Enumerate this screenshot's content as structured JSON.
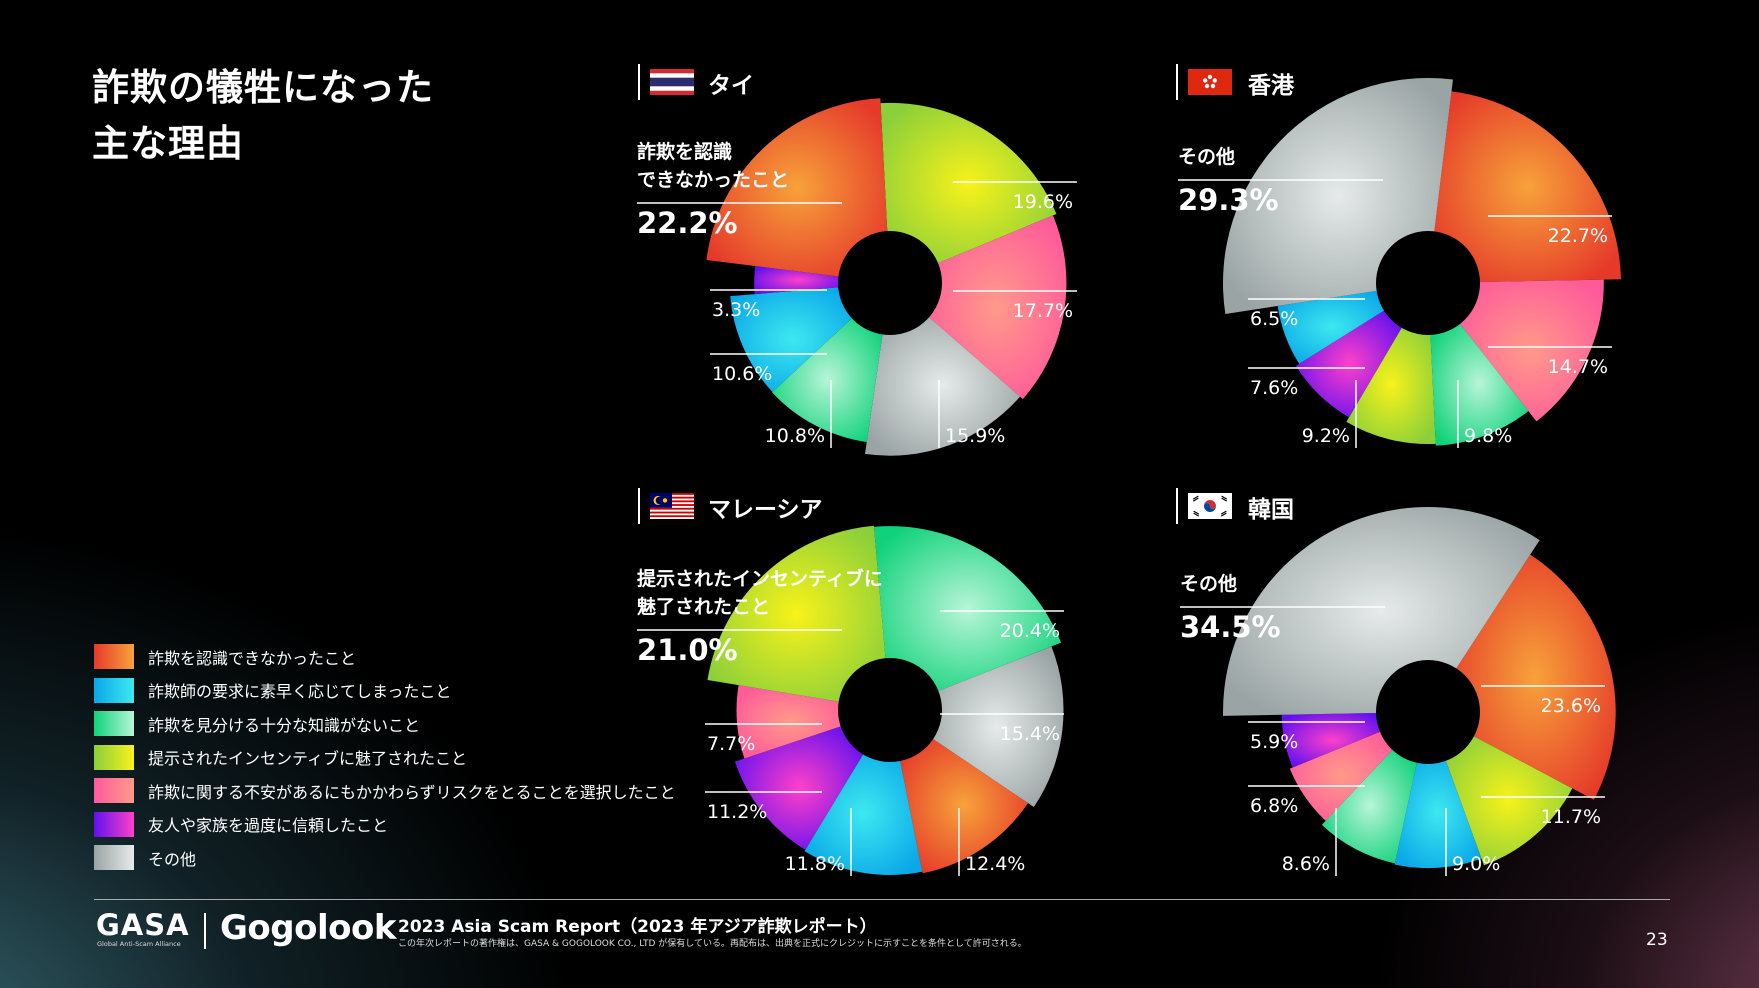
{
  "title_line1": "詐欺の犠牲になった",
  "title_line2": "主な理由",
  "legend": [
    {
      "label": "詐欺を認識できなかったこと",
      "color1": "#e53a2a",
      "color2": "#f7a23a"
    },
    {
      "label": "詐欺師の要求に素早く応じてしまったこと",
      "color1": "#0aa8e8",
      "color2": "#3ee8f0"
    },
    {
      "label": "詐欺を見分ける十分な知識がないこと",
      "color1": "#10d27a",
      "color2": "#b8f5d8"
    },
    {
      "label": "提示されたインセンティブに魅了されたこと",
      "color1": "#8bcf3a",
      "color2": "#f8f21a"
    },
    {
      "label": "詐欺に関する不安があるにもかかわらずリスクをとることを選択したこと",
      "color1": "#ff5a9a",
      "color2": "#ff9a8a"
    },
    {
      "label": "友人や家族を過度に信頼したこと",
      "color1": "#6010f0",
      "color2": "#ff40c8"
    },
    {
      "label": "その他",
      "color1": "#9aa4a4",
      "color2": "#e6eaea"
    }
  ],
  "chart_data": [
    {
      "type": "pie",
      "country": "タイ",
      "flag": "thailand-flag-icon",
      "categories": [
        "詐欺を認識できなかったこと",
        "詐欺師の要求に素早く応じてしまったこと",
        "詐欺を見分ける十分な知識がないこと",
        "提示されたインセンティブに魅了されたこと",
        "詐欺に関する不安があるにもかかわらずリスクをとることを選択したこと",
        "友人や家族を過度に信頼したこと",
        "その他"
      ],
      "values": [
        22.2,
        10.6,
        10.8,
        19.6,
        17.7,
        3.3,
        15.9
      ],
      "labels": [
        "22.2%",
        "10.6%",
        "10.8%",
        "19.6%",
        "17.7%",
        "3.3%",
        "15.9%"
      ],
      "highlight_label": "詐欺を認識できなかったこと"
    },
    {
      "type": "pie",
      "country": "香港",
      "flag": "hong-kong-flag-icon",
      "categories": [
        "詐欺を認識できなかったこと",
        "詐欺師の要求に素早く応じてしまったこと",
        "詐欺を見分ける十分な知識がないこと",
        "提示されたインセンティブに魅了されたこと",
        "詐欺に関する不安があるにもかかわらずリスクをとることを選択したこと",
        "友人や家族を過度に信頼したこと",
        "その他"
      ],
      "values": [
        22.7,
        6.5,
        9.8,
        9.2,
        14.7,
        7.6,
        29.3
      ],
      "labels": [
        "22.7%",
        "6.5%",
        "9.8%",
        "9.2%",
        "14.7%",
        "7.6%",
        "29.3%"
      ],
      "highlight_label": "その他"
    },
    {
      "type": "pie",
      "country": "マレーシア",
      "flag": "malaysia-flag-icon",
      "categories": [
        "詐欺を認識できなかったこと",
        "詐欺師の要求に素早く応じてしまったこと",
        "詐欺を見分ける十分な知識がないこと",
        "提示されたインセンティブに魅了されたこと",
        "詐欺に関する不安があるにもかかわらずリスクをとることを選択したこと",
        "友人や家族を過度に信頼したこと",
        "その他"
      ],
      "values": [
        12.4,
        11.8,
        20.4,
        21.0,
        7.7,
        11.2,
        15.4
      ],
      "labels": [
        "12.4%",
        "11.8%",
        "20.4%",
        "21.0%",
        "7.7%",
        "11.2%",
        "15.4%"
      ],
      "highlight_label": "提示されたインセンティブに魅了されたこと"
    },
    {
      "type": "pie",
      "country": "韓国",
      "flag": "south-korea-flag-icon",
      "categories": [
        "詐欺を認識できなかったこと",
        "詐欺師の要求に素早く応じてしまったこと",
        "詐欺を見分ける十分な知識がないこと",
        "提示されたインセンティブに魅了されたこと",
        "詐欺に関する不安があるにもかかわらずリスクをとることを選択したこと",
        "友人や家族を過度に信頼したこと",
        "その他"
      ],
      "values": [
        23.6,
        9.0,
        8.6,
        11.7,
        6.8,
        5.9,
        34.5
      ],
      "labels": [
        "23.6%",
        "9.0%",
        "8.6%",
        "11.7%",
        "6.8%",
        "5.9%",
        "34.5%"
      ],
      "highlight_label": "その他"
    }
  ],
  "highlight_text": {
    "thailand": [
      "詐欺を認識",
      "できなかったこと"
    ],
    "hongkong": [
      "その他"
    ],
    "malaysia": [
      "提示されたインセンティブに",
      "魅了されたこと"
    ],
    "korea": [
      "その他"
    ]
  },
  "footer": {
    "gasa": "GASA",
    "gasa_sub": "Global Anti-Scam Alliance",
    "gogolook": "Gogolook",
    "report": "2023 Asia Scam Report（2023 年アジア詐欺レポート）",
    "copyright": "この年次レポートの著作権は、GASA & GOGOLOOK CO., LTD が保有している。再配布は、出典を正式にクレジットに示すことを条件として許可される。",
    "page": "23"
  }
}
